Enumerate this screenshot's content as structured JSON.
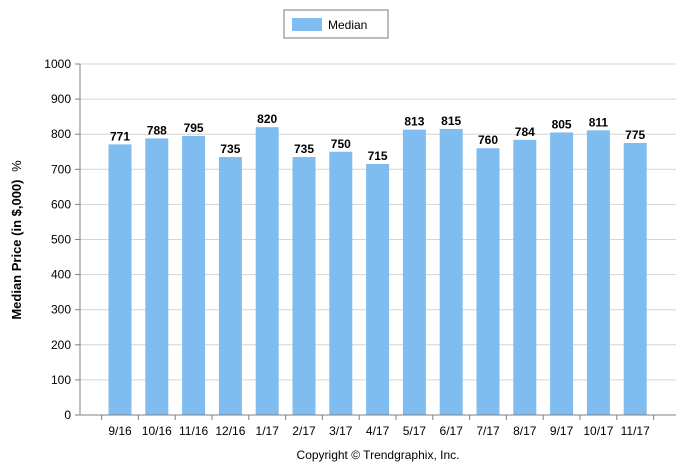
{
  "chart_data": {
    "type": "bar",
    "categories": [
      "9/16",
      "10/16",
      "11/16",
      "12/16",
      "1/17",
      "2/17",
      "3/17",
      "4/17",
      "5/17",
      "6/17",
      "7/17",
      "8/17",
      "9/17",
      "10/17",
      "11/17"
    ],
    "series": [
      {
        "name": "Median",
        "values": [
          771,
          788,
          795,
          735,
          820,
          735,
          750,
          715,
          813,
          815,
          760,
          784,
          805,
          811,
          775
        ]
      }
    ],
    "ylabel": "Median Price (in $,000)",
    "ylabel_unit": "%",
    "ylim": [
      0,
      1000
    ],
    "yticks": [
      0,
      100,
      200,
      300,
      400,
      500,
      600,
      700,
      800,
      900,
      1000
    ],
    "grid": true,
    "legend_position": "top-center",
    "bar_color": "#7fbdf0",
    "footer": "Copyright © Trendgraphix, Inc."
  }
}
